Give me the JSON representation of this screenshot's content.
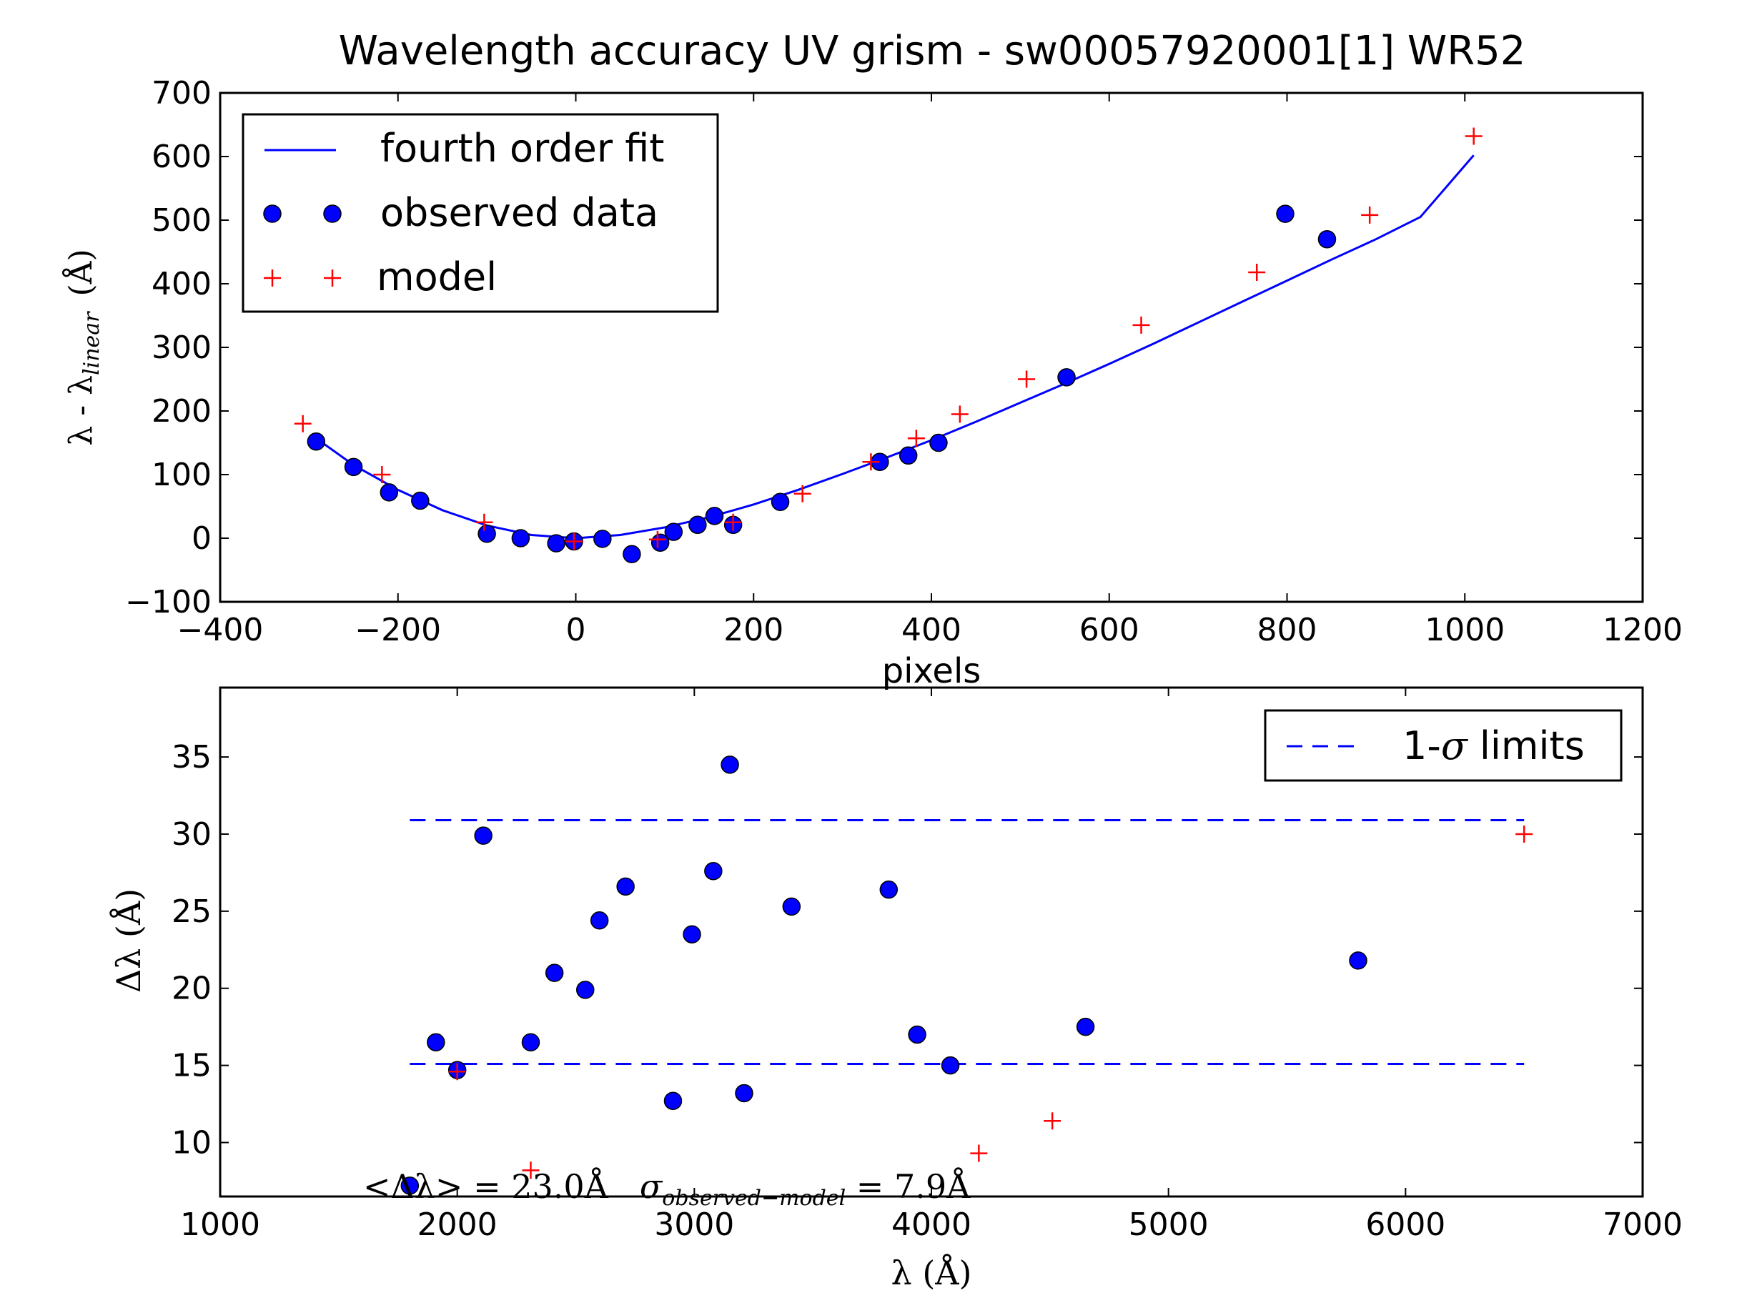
{
  "chart_data": [
    {
      "type": "scatter",
      "title": "Wavelength accuracy UV grism - sw00057920001[1] WR52",
      "xlabel": "pixels",
      "ylabel": "λ - λlinear  (Å)",
      "ylabel_parts": {
        "main": "λ - λ",
        "sub": "linear",
        "unit": "(Å)"
      },
      "xlim": [
        -400,
        1200
      ],
      "ylim": [
        -100,
        700
      ],
      "xticks": [
        "−400",
        "−200",
        "0",
        "200",
        "400",
        "600",
        "800",
        "1000",
        "1200"
      ],
      "yticks": [
        "−100",
        "0",
        "100",
        "200",
        "300",
        "400",
        "500",
        "600",
        "700"
      ],
      "legend_position": "top-left",
      "legend": [
        "fourth order fit",
        "observed data",
        "model"
      ],
      "series": [
        {
          "name": "fourth order fit",
          "kind": "line",
          "color": "#0000ff",
          "x": [
            -295,
            -250,
            -200,
            -150,
            -100,
            -50,
            0,
            50,
            100,
            150,
            200,
            250,
            300,
            350,
            400,
            450,
            500,
            550,
            600,
            650,
            700,
            750,
            800,
            850,
            900,
            950,
            1010
          ],
          "y": [
            160,
            115,
            76,
            44,
            20,
            5,
            0,
            5,
            17,
            33,
            53,
            76,
            101,
            127,
            154,
            183,
            213,
            243,
            274,
            306,
            339,
            372,
            405,
            438,
            470,
            505,
            602
          ]
        },
        {
          "name": "observed data",
          "kind": "marker-circle",
          "color": "#0000ff",
          "x": [
            -292,
            -250,
            -210,
            -175,
            -100,
            -62,
            -22,
            -2,
            30,
            63,
            95,
            110,
            137,
            156,
            177,
            230,
            342,
            374,
            408,
            552,
            798,
            845
          ],
          "y": [
            152,
            112,
            72,
            59,
            7,
            0,
            -8,
            -5,
            -1,
            -25,
            -7,
            10,
            21,
            35,
            21,
            57,
            120,
            130,
            150,
            253,
            510,
            470
          ]
        },
        {
          "name": "model",
          "kind": "marker-plus",
          "color": "#ff0000",
          "x": [
            -307,
            -218,
            -103,
            -2,
            92,
            177,
            255,
            332,
            383,
            432,
            507,
            636,
            766,
            893,
            1010
          ],
          "y": [
            180,
            100,
            25,
            -5,
            -2,
            25,
            70,
            120,
            157,
            195,
            250,
            335,
            418,
            508,
            632
          ]
        }
      ]
    },
    {
      "type": "scatter",
      "xlabel": "λ (Å)",
      "ylabel": "Δλ (Å)",
      "xlim": [
        1000,
        7000
      ],
      "ylim": [
        6.5,
        39.5
      ],
      "xticks": [
        "1000",
        "2000",
        "3000",
        "4000",
        "5000",
        "6000",
        "7000"
      ],
      "yticks": [
        "10",
        "15",
        "20",
        "25",
        "30",
        "35"
      ],
      "legend_position": "top-right",
      "legend": [
        "1-σ limits"
      ],
      "annotation": "<Δλ> = 23.0Å   σobserved−model = 7.9Å",
      "annotation_parts": {
        "mean": "<Δλ> = 23.0Å",
        "sigma": "σ",
        "sigma_sub": "observed−model",
        "sigma_val": " = 7.9Å"
      },
      "limits": {
        "upper": 30.9,
        "lower": 15.1,
        "x_range": [
          1800,
          6500
        ],
        "color": "#0000ff",
        "name": "1-σ limits"
      },
      "series": [
        {
          "name": "observed data",
          "kind": "marker-circle",
          "color": "#0000ff",
          "x": [
            1800,
            1910,
            2000,
            2110,
            2310,
            2410,
            2540,
            2600,
            2710,
            2910,
            2990,
            3080,
            3150,
            3210,
            3410,
            3820,
            3940,
            4080,
            4650,
            5800
          ],
          "y": [
            7.2,
            16.5,
            14.7,
            29.9,
            16.5,
            21.0,
            19.9,
            24.4,
            26.6,
            12.7,
            23.5,
            27.6,
            34.5,
            13.2,
            25.3,
            26.4,
            17.0,
            15.0,
            17.5,
            21.8
          ]
        },
        {
          "name": "model",
          "kind": "marker-plus",
          "color": "#ff0000",
          "x": [
            2000,
            2310,
            4200,
            4510,
            6500
          ],
          "y": [
            14.6,
            8.2,
            9.3,
            11.4,
            30.0
          ]
        }
      ]
    }
  ]
}
